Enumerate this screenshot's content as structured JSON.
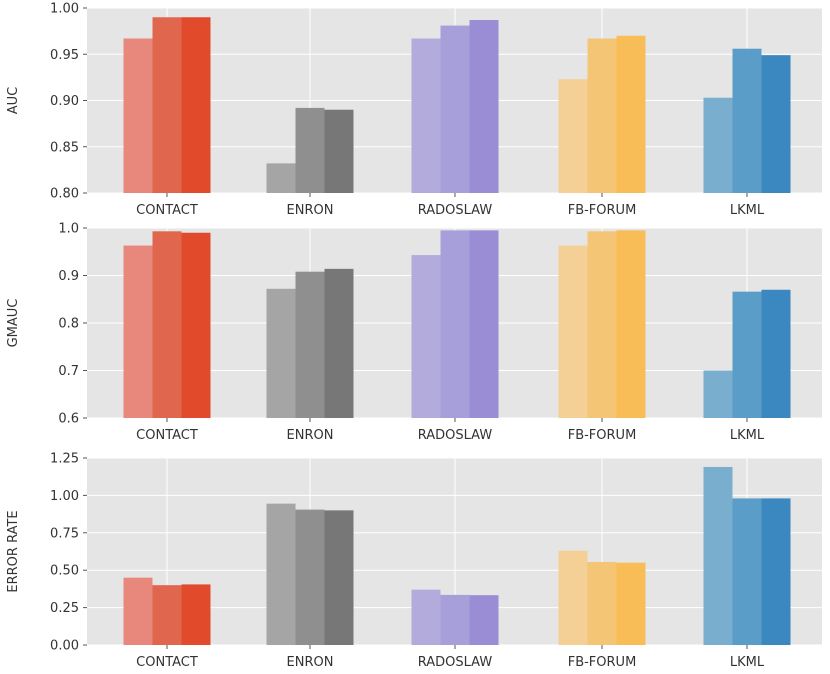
{
  "chart_data": [
    {
      "type": "bar",
      "ylabel": "AUC",
      "ylim": [
        0.8,
        1.0
      ],
      "yticks": [
        "0.80",
        "0.85",
        "0.90",
        "0.95",
        "1.00"
      ],
      "categories": [
        "CONTACT",
        "ENRON",
        "RADOSLAW",
        "FB-FORUM",
        "LKML"
      ],
      "values": [
        [
          0.967,
          0.99,
          0.99
        ],
        [
          0.832,
          0.892,
          0.89
        ],
        [
          0.967,
          0.981,
          0.987
        ],
        [
          0.923,
          0.967,
          0.97
        ],
        [
          0.903,
          0.956,
          0.949
        ]
      ],
      "grid": true
    },
    {
      "type": "bar",
      "ylabel": "GMAUC",
      "ylim": [
        0.6,
        1.0
      ],
      "yticks": [
        "0.6",
        "0.7",
        "0.8",
        "0.9",
        "1.0"
      ],
      "categories": [
        "CONTACT",
        "ENRON",
        "RADOSLAW",
        "FB-FORUM",
        "LKML"
      ],
      "values": [
        [
          0.963,
          0.993,
          0.99
        ],
        [
          0.872,
          0.908,
          0.914
        ],
        [
          0.943,
          0.995,
          0.995
        ],
        [
          0.963,
          0.993,
          0.995
        ],
        [
          0.7,
          0.866,
          0.87
        ]
      ],
      "grid": true
    },
    {
      "type": "bar",
      "ylabel": "ERROR RATE",
      "ylim": [
        0.0,
        1.25
      ],
      "yticks": [
        "0.00",
        "0.25",
        "0.50",
        "0.75",
        "1.00",
        "1.25"
      ],
      "categories": [
        "CONTACT",
        "ENRON",
        "RADOSLAW",
        "FB-FORUM",
        "LKML"
      ],
      "values": [
        [
          0.45,
          0.4,
          0.405
        ],
        [
          0.945,
          0.905,
          0.9
        ],
        [
          0.37,
          0.335,
          0.333
        ],
        [
          0.63,
          0.555,
          0.55
        ],
        [
          1.19,
          0.98,
          0.98
        ]
      ],
      "grid": true
    }
  ],
  "colors": {
    "background": "#e5e5e5",
    "grid": "#ffffff",
    "groups": [
      [
        "#e8877c",
        "#e0664e",
        "#e24a2c"
      ],
      [
        "#a5a5a5",
        "#8f8f8f",
        "#777777"
      ],
      [
        "#b3abdc",
        "#a79fda",
        "#9a8dd6"
      ],
      [
        "#f5d096",
        "#f5c576",
        "#f8bd57"
      ],
      [
        "#7aaece",
        "#5a9dc9",
        "#3a88bf"
      ]
    ]
  }
}
